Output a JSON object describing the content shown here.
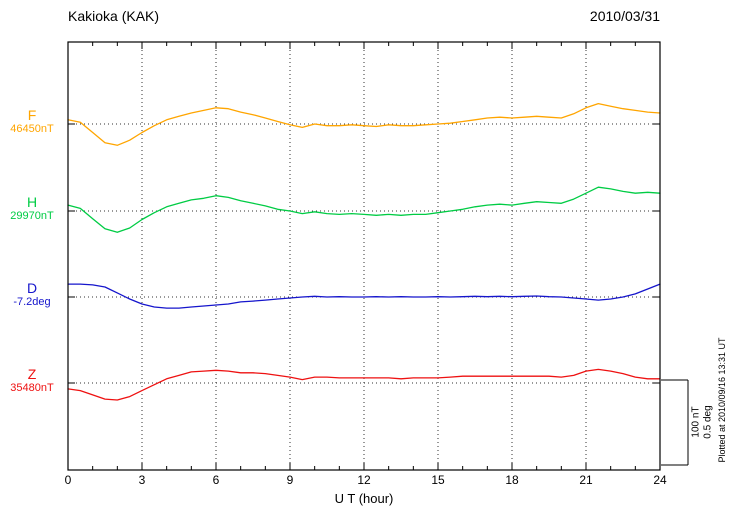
{
  "chart_data": {
    "type": "line",
    "title": "Kakioka (KAK)",
    "date": "2010/03/31",
    "xlabel": "U T (hour)",
    "x_range": [
      0,
      24
    ],
    "x_ticks": [
      0,
      3,
      6,
      9,
      12,
      15,
      18,
      21,
      24
    ],
    "x_step": 0.5,
    "grid": "dotted vertical lines at 3-hour ticks; dotted horizontal baseline per trace",
    "scale_bar": {
      "nT": "100 nT",
      "deg": "0.5 deg",
      "span_nT": 100,
      "span_deg": 0.5
    },
    "plotted_at": "Plotted at 2010/09/16 13:31 UT",
    "series": [
      {
        "name": "F",
        "unit": "nT",
        "baseline_value": 46450,
        "baseline_label": "46450nT",
        "color": "#FFA500",
        "offsets": [
          5,
          2,
          -10,
          -22,
          -25,
          -19,
          -10,
          -2,
          5,
          9,
          13,
          16,
          19,
          18,
          14,
          11,
          7,
          3,
          -1,
          -4,
          0,
          -2,
          -2,
          -1,
          -2,
          -3,
          -1,
          -2,
          -2,
          -1,
          0,
          1,
          3,
          5,
          7,
          8,
          7,
          8,
          9,
          8,
          7,
          12,
          19,
          24,
          21,
          18,
          16,
          14,
          13
        ]
      },
      {
        "name": "H",
        "unit": "nT",
        "baseline_value": 29970,
        "baseline_label": "29970nT",
        "color": "#00CC44",
        "offsets": [
          7,
          3,
          -9,
          -21,
          -25,
          -20,
          -10,
          -2,
          5,
          9,
          13,
          15,
          18,
          16,
          12,
          9,
          6,
          2,
          0,
          -3,
          -1,
          -3,
          -4,
          -3,
          -4,
          -5,
          -4,
          -5,
          -4,
          -4,
          -2,
          0,
          2,
          5,
          7,
          8,
          7,
          9,
          11,
          10,
          9,
          14,
          21,
          28,
          26,
          23,
          21,
          22,
          21
        ]
      },
      {
        "name": "D",
        "unit": "deg",
        "baseline_value": -7.2,
        "baseline_label": "-7.2deg",
        "color": "#1515CC",
        "offsets": [
          0.076,
          0.076,
          0.071,
          0.059,
          0.024,
          -0.012,
          -0.041,
          -0.059,
          -0.065,
          -0.065,
          -0.059,
          -0.053,
          -0.047,
          -0.041,
          -0.029,
          -0.024,
          -0.018,
          -0.012,
          -0.006,
          0,
          0.004,
          0,
          0.002,
          0,
          0,
          0.002,
          0,
          0.002,
          0,
          0,
          0.002,
          0,
          0.002,
          0.004,
          0.002,
          0.004,
          0.002,
          0.004,
          0.006,
          0.002,
          0,
          -0.006,
          -0.012,
          -0.018,
          -0.012,
          0,
          0.018,
          0.047,
          0.076
        ]
      },
      {
        "name": "Z",
        "unit": "nT",
        "baseline_value": 35480,
        "baseline_label": "35480nT",
        "color": "#EE1111",
        "offsets": [
          -7,
          -9,
          -14,
          -19,
          -20,
          -16,
          -9,
          -2,
          5,
          9,
          13,
          14,
          15,
          14,
          12,
          12,
          11,
          9,
          7,
          4,
          7,
          7,
          6,
          6,
          6,
          6,
          6,
          5,
          6,
          6,
          6,
          7,
          8,
          8,
          8,
          8,
          8,
          8,
          8,
          8,
          7,
          9,
          14,
          16,
          14,
          11,
          7,
          5,
          5
        ]
      }
    ]
  }
}
